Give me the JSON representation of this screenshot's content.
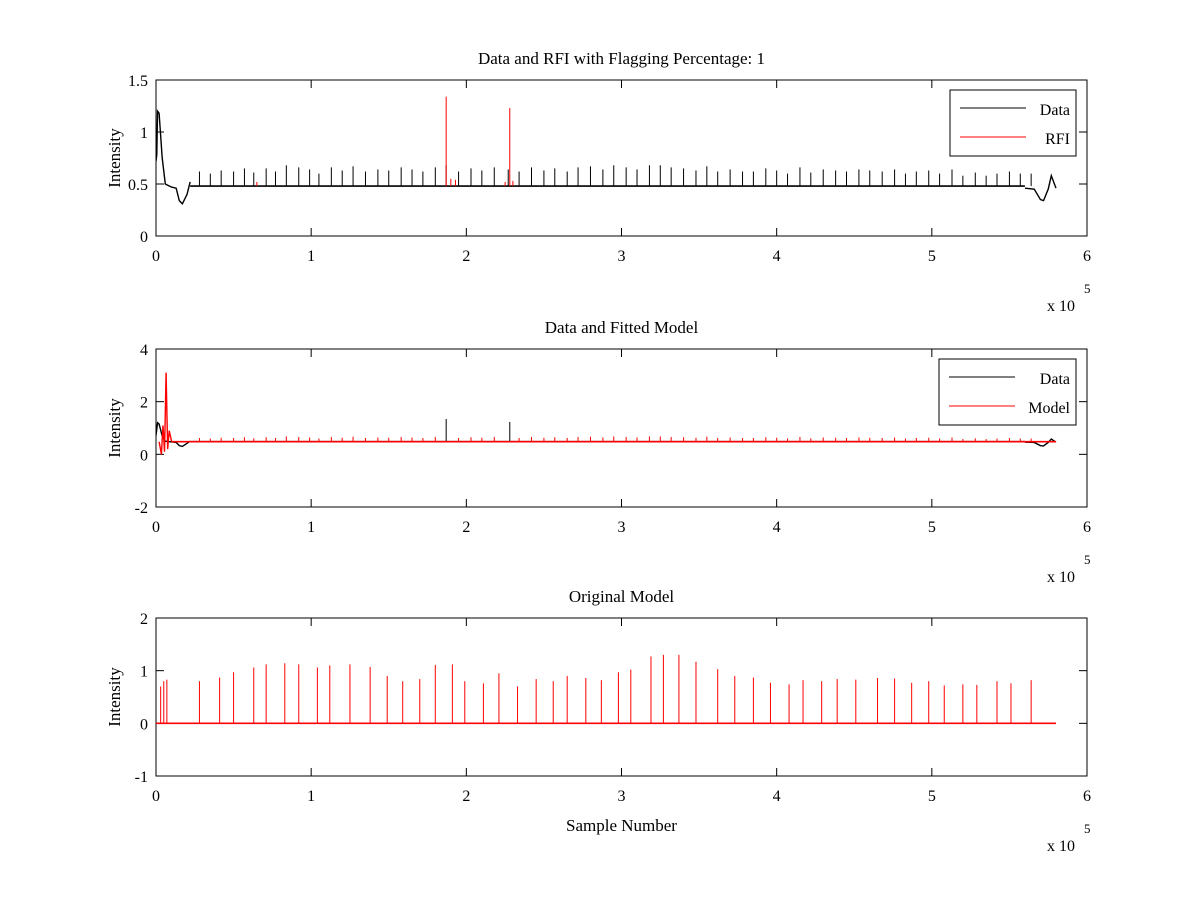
{
  "chart_data": [
    {
      "type": "line",
      "title": "Data and RFI with Flagging Percentage: 1",
      "xlabel": "",
      "ylabel": "Intensity",
      "xlim": [
        0,
        6
      ],
      "ylim": [
        0,
        1.5
      ],
      "x_ticks": [
        "0",
        "1",
        "2",
        "3",
        "4",
        "5",
        "6"
      ],
      "y_ticks": [
        "0",
        "0.5",
        "1",
        "1.5"
      ],
      "x_exponent_label": "x 10",
      "x_exponent_power": "5",
      "legend_position": "top-right",
      "grid": false,
      "x_end": 5.8,
      "series": [
        {
          "name": "Data",
          "color": "#000000",
          "baseline": 0.48,
          "start_transient": [
            [
              0.0,
              0.72
            ],
            [
              0.005,
              0.78
            ],
            [
              0.01,
              1.2
            ],
            [
              0.02,
              1.18
            ],
            [
              0.04,
              0.75
            ],
            [
              0.06,
              0.5
            ],
            [
              0.1,
              0.47
            ],
            [
              0.13,
              0.46
            ],
            [
              0.15,
              0.34
            ],
            [
              0.17,
              0.31
            ],
            [
              0.2,
              0.4
            ],
            [
              0.22,
              0.52
            ]
          ],
          "end_transient": [
            [
              5.6,
              0.46
            ],
            [
              5.66,
              0.45
            ],
            [
              5.7,
              0.35
            ],
            [
              5.72,
              0.34
            ],
            [
              5.75,
              0.45
            ],
            [
              5.77,
              0.58
            ],
            [
              5.8,
              0.46
            ]
          ],
          "spikes_x": [
            0.28,
            0.35,
            0.42,
            0.5,
            0.57,
            0.63,
            0.71,
            0.77,
            0.84,
            0.92,
            0.99,
            1.05,
            1.13,
            1.2,
            1.27,
            1.35,
            1.43,
            1.5,
            1.58,
            1.65,
            1.72,
            1.8,
            1.87,
            1.95,
            2.03,
            2.1,
            2.18,
            2.27,
            2.34,
            2.42,
            2.5,
            2.57,
            2.65,
            2.72,
            2.8,
            2.88,
            2.95,
            3.03,
            3.1,
            3.18,
            3.25,
            3.32,
            3.4,
            3.48,
            3.55,
            3.62,
            3.7,
            3.78,
            3.85,
            3.93,
            4.0,
            4.07,
            4.15,
            4.22,
            4.3,
            4.38,
            4.45,
            4.53,
            4.6,
            4.68,
            4.76,
            4.83,
            4.9,
            4.98,
            5.05,
            5.13,
            5.2,
            5.28,
            5.35,
            5.42,
            5.5,
            5.57,
            5.64
          ],
          "spikes_y": [
            0.62,
            0.6,
            0.63,
            0.62,
            0.65,
            0.61,
            0.65,
            0.62,
            0.68,
            0.66,
            0.64,
            0.6,
            0.66,
            0.63,
            0.67,
            0.62,
            0.64,
            0.63,
            0.66,
            0.64,
            0.62,
            0.66,
            0.68,
            0.62,
            0.65,
            0.63,
            0.66,
            0.64,
            0.62,
            0.66,
            0.63,
            0.65,
            0.62,
            0.66,
            0.67,
            0.64,
            0.68,
            0.66,
            0.64,
            0.68,
            0.68,
            0.66,
            0.65,
            0.63,
            0.67,
            0.62,
            0.64,
            0.62,
            0.62,
            0.65,
            0.63,
            0.6,
            0.66,
            0.61,
            0.64,
            0.63,
            0.62,
            0.64,
            0.63,
            0.62,
            0.64,
            0.6,
            0.62,
            0.63,
            0.6,
            0.64,
            0.58,
            0.61,
            0.58,
            0.6,
            0.62,
            0.6,
            0.6
          ]
        },
        {
          "name": "RFI",
          "color": "#ff0000",
          "segments": [
            {
              "x": 0.65,
              "y0": 0.48,
              "y1": 0.52
            },
            {
              "x": 1.87,
              "y0": 0.48,
              "y1": 1.34
            },
            {
              "x": 1.9,
              "y0": 0.48,
              "y1": 0.55
            },
            {
              "x": 1.93,
              "y0": 0.48,
              "y1": 0.54
            },
            {
              "x": 2.25,
              "y0": 0.48,
              "y1": 0.52
            },
            {
              "x": 2.28,
              "y0": 0.48,
              "y1": 1.23
            },
            {
              "x": 2.3,
              "y0": 0.48,
              "y1": 0.53
            }
          ]
        }
      ]
    },
    {
      "type": "line",
      "title": "Data and Fitted Model",
      "xlabel": "",
      "ylabel": "Intensity",
      "xlim": [
        0,
        6
      ],
      "ylim": [
        -2,
        4
      ],
      "x_ticks": [
        "0",
        "1",
        "2",
        "3",
        "4",
        "5",
        "6"
      ],
      "y_ticks": [
        "-2",
        "0",
        "2",
        "4"
      ],
      "x_exponent_label": "x 10",
      "x_exponent_power": "5",
      "legend_position": "top-right",
      "grid": false,
      "x_end": 5.8,
      "series": [
        {
          "name": "Data",
          "color": "#000000",
          "baseline": 0.48,
          "start_transient": [
            [
              0.0,
              0.72
            ],
            [
              0.01,
              1.2
            ],
            [
              0.02,
              1.15
            ],
            [
              0.04,
              0.7
            ],
            [
              0.06,
              0.5
            ],
            [
              0.13,
              0.45
            ],
            [
              0.15,
              0.33
            ],
            [
              0.17,
              0.3
            ],
            [
              0.2,
              0.42
            ],
            [
              0.22,
              0.5
            ]
          ],
          "end_transient": [
            [
              5.6,
              0.46
            ],
            [
              5.66,
              0.45
            ],
            [
              5.7,
              0.33
            ],
            [
              5.72,
              0.32
            ],
            [
              5.75,
              0.45
            ],
            [
              5.77,
              0.58
            ],
            [
              5.8,
              0.46
            ]
          ],
          "spikes_x": [
            1.87,
            2.28
          ],
          "spikes_y": [
            1.34,
            1.23
          ]
        },
        {
          "name": "Model",
          "color": "#ff0000",
          "baseline": 0.48,
          "start_transient": [
            [
              0.02,
              0.48
            ],
            [
              0.035,
              0.0
            ],
            [
              0.045,
              1.1
            ],
            [
              0.055,
              0.1
            ],
            [
              0.065,
              3.1
            ],
            [
              0.075,
              0.2
            ],
            [
              0.085,
              0.9
            ],
            [
              0.1,
              0.5
            ]
          ],
          "spikes_x": [
            0.28,
            0.35,
            0.42,
            0.5,
            0.57,
            0.63,
            0.71,
            0.77,
            0.84,
            0.92,
            0.99,
            1.05,
            1.13,
            1.2,
            1.27,
            1.35,
            1.43,
            1.5,
            1.58,
            1.65,
            1.72,
            1.8,
            1.95,
            2.03,
            2.1,
            2.18,
            2.34,
            2.42,
            2.5,
            2.57,
            2.65,
            2.72,
            2.8,
            2.88,
            2.95,
            3.03,
            3.1,
            3.18,
            3.25,
            3.32,
            3.4,
            3.48,
            3.55,
            3.62,
            3.7,
            3.78,
            3.85,
            3.93,
            4.0,
            4.07,
            4.15,
            4.22,
            4.3,
            4.38,
            4.45,
            4.53,
            4.6,
            4.68,
            4.76,
            4.83,
            4.9,
            4.98,
            5.05,
            5.13,
            5.2,
            5.28,
            5.35,
            5.42,
            5.5,
            5.57,
            5.64
          ],
          "spikes_y": [
            0.62,
            0.6,
            0.63,
            0.62,
            0.65,
            0.61,
            0.65,
            0.62,
            0.68,
            0.66,
            0.64,
            0.6,
            0.66,
            0.63,
            0.67,
            0.62,
            0.64,
            0.63,
            0.66,
            0.64,
            0.62,
            0.66,
            0.62,
            0.65,
            0.63,
            0.66,
            0.62,
            0.66,
            0.63,
            0.65,
            0.62,
            0.66,
            0.67,
            0.64,
            0.68,
            0.66,
            0.64,
            0.68,
            0.68,
            0.66,
            0.65,
            0.63,
            0.67,
            0.62,
            0.64,
            0.62,
            0.62,
            0.65,
            0.63,
            0.6,
            0.66,
            0.61,
            0.64,
            0.63,
            0.62,
            0.64,
            0.63,
            0.62,
            0.64,
            0.6,
            0.62,
            0.63,
            0.6,
            0.64,
            0.58,
            0.61,
            0.58,
            0.6,
            0.62,
            0.6,
            0.6
          ]
        }
      ]
    },
    {
      "type": "line",
      "title": "Original Model",
      "xlabel": "Sample Number",
      "ylabel": "Intensity",
      "xlim": [
        0,
        6
      ],
      "ylim": [
        -1,
        2
      ],
      "x_ticks": [
        "0",
        "1",
        "2",
        "3",
        "4",
        "5",
        "6"
      ],
      "y_ticks": [
        "-1",
        "0",
        "1",
        "2"
      ],
      "x_exponent_label": "x 10",
      "x_exponent_power": "5",
      "legend_position": "none",
      "grid": false,
      "x_end": 5.8,
      "series": [
        {
          "color": "#ff0000",
          "baseline": 0.0,
          "spikes_x": [
            0.03,
            0.05,
            0.07,
            0.28,
            0.41,
            0.5,
            0.63,
            0.71,
            0.83,
            0.92,
            1.04,
            1.12,
            1.25,
            1.38,
            1.49,
            1.59,
            1.7,
            1.8,
            1.91,
            1.99,
            2.11,
            2.21,
            2.33,
            2.45,
            2.56,
            2.65,
            2.77,
            2.87,
            2.98,
            3.06,
            3.19,
            3.27,
            3.37,
            3.48,
            3.62,
            3.73,
            3.85,
            3.96,
            4.08,
            4.17,
            4.29,
            4.39,
            4.51,
            4.65,
            4.76,
            4.87,
            4.98,
            5.08,
            5.2,
            5.29,
            5.42,
            5.51,
            5.64
          ],
          "spikes_y": [
            0.7,
            0.8,
            0.83,
            0.8,
            0.87,
            0.97,
            1.06,
            1.12,
            1.14,
            1.12,
            1.06,
            1.1,
            1.12,
            1.07,
            0.9,
            0.8,
            0.84,
            1.11,
            1.12,
            0.8,
            0.76,
            0.95,
            0.7,
            0.84,
            0.8,
            0.9,
            0.86,
            0.82,
            0.97,
            1.02,
            1.27,
            1.3,
            1.3,
            1.17,
            1.03,
            0.9,
            0.87,
            0.77,
            0.74,
            0.82,
            0.8,
            0.84,
            0.83,
            0.86,
            0.85,
            0.77,
            0.8,
            0.72,
            0.74,
            0.73,
            0.8,
            0.76,
            0.82
          ]
        }
      ]
    }
  ]
}
